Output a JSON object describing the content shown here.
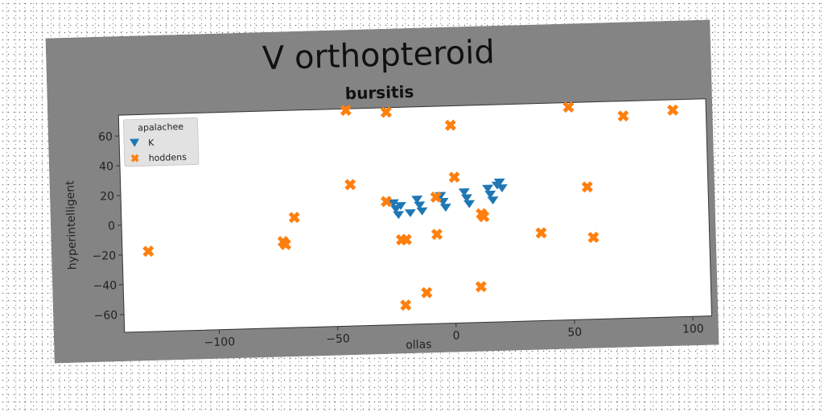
{
  "chart_data": {
    "type": "scatter",
    "title": "V orthopteroid",
    "subtitle": "bursitis",
    "xlabel": "ollas",
    "ylabel": "hyperintelligent",
    "xlim": [
      -140,
      108
    ],
    "ylim": [
      -72,
      74
    ],
    "xticks": [
      -100,
      -50,
      0,
      50,
      100
    ],
    "yticks": [
      -60,
      -40,
      -20,
      0,
      20,
      40,
      60
    ],
    "xtick_labels": [
      "−100",
      "−50",
      "0",
      "50",
      "100"
    ],
    "ytick_labels": [
      "−60",
      "−40",
      "−20",
      "0",
      "20",
      "40",
      "60"
    ],
    "grid": false,
    "legend": {
      "title": "apalachee",
      "placement": "top-left",
      "entries": [
        "K",
        "hoddens"
      ]
    },
    "series": [
      {
        "name": "K",
        "marker": "triangle-down",
        "color": "#1f77b4",
        "points": [
          [
            -25,
            10
          ],
          [
            -15,
            12
          ],
          [
            -5,
            14
          ],
          [
            5,
            16
          ],
          [
            15,
            18
          ],
          [
            -24,
            6
          ],
          [
            -14,
            8
          ],
          [
            -4,
            10
          ],
          [
            6,
            12
          ],
          [
            16,
            14
          ],
          [
            -23,
            2
          ],
          [
            -13,
            4
          ],
          [
            -3,
            6
          ],
          [
            7,
            8
          ],
          [
            17,
            10
          ],
          [
            20,
            22
          ],
          [
            21,
            18
          ],
          [
            19,
            20
          ],
          [
            -22,
            8
          ],
          [
            -18,
            3
          ]
        ]
      },
      {
        "name": "hoddens",
        "marker": "x-filled",
        "color": "#ff7f0e",
        "points": [
          [
            -129,
            -18
          ],
          [
            -72,
            -14
          ],
          [
            -71,
            -16
          ],
          [
            -67,
            2
          ],
          [
            -44,
            73
          ],
          [
            -43,
            23
          ],
          [
            -27,
            71
          ],
          [
            -28,
            11
          ],
          [
            -22,
            -15
          ],
          [
            -20,
            -15
          ],
          [
            -21,
            -59
          ],
          [
            -12,
            -51
          ],
          [
            -7,
            -12
          ],
          [
            -7,
            13
          ],
          [
            0,
            61
          ],
          [
            1,
            26
          ],
          [
            11,
            -48
          ],
          [
            12,
            1
          ],
          [
            13,
            -1
          ],
          [
            37,
            -13
          ],
          [
            50,
            71
          ],
          [
            57,
            17
          ],
          [
            59,
            -17
          ],
          [
            73,
            64
          ],
          [
            94,
            67
          ]
        ]
      }
    ]
  }
}
